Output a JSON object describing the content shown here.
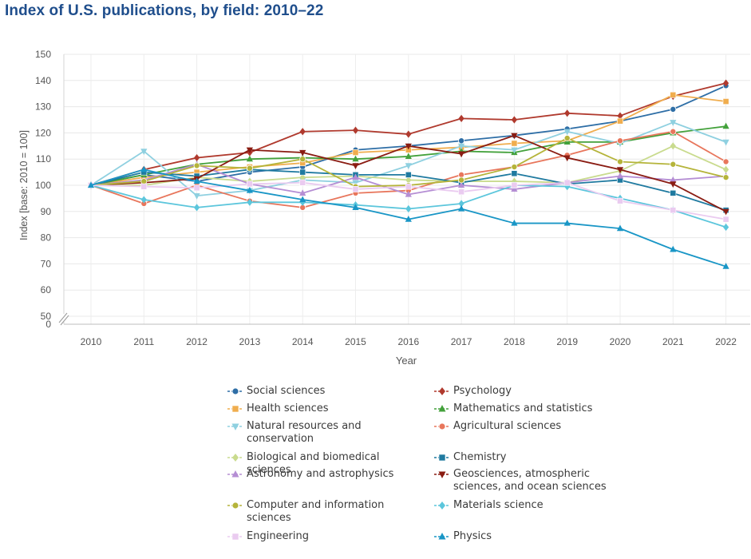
{
  "title": "Index of U.S. publications, by field: 2010–22",
  "chart_data": {
    "type": "line",
    "title": "Index of U.S. publications, by field: 2010–22",
    "xlabel": "Year",
    "ylabel": "Index [base: 2010 = 100]",
    "x": [
      2010,
      2011,
      2012,
      2013,
      2014,
      2015,
      2016,
      2017,
      2018,
      2019,
      2020,
      2021,
      2022
    ],
    "ylim": [
      50,
      150
    ],
    "yticks": [
      150,
      140,
      130,
      120,
      110,
      100,
      90,
      80,
      70,
      60,
      50
    ],
    "y_break_label": "0",
    "grid": true,
    "legend_position": "bottom",
    "series": [
      {
        "name": "Social sciences",
        "color": "#2e6ea6",
        "marker": "circle",
        "values": [
          100,
          104,
          101.5,
          105,
          107,
          113.5,
          115,
          117,
          119,
          121.5,
          124.5,
          129,
          138
        ]
      },
      {
        "name": "Psychology",
        "color": "#b03a2e",
        "marker": "diamond",
        "values": [
          100,
          106,
          110.5,
          112.5,
          120.5,
          121,
          119.5,
          125.5,
          125,
          127.5,
          126.5,
          134,
          139
        ]
      },
      {
        "name": "Health sciences",
        "color": "#f0ad4e",
        "marker": "square",
        "values": [
          100,
          103,
          105,
          107,
          108.5,
          112.5,
          113.5,
          114.5,
          116,
          117,
          124.5,
          134.5,
          132
        ]
      },
      {
        "name": "Mathematics and statistics",
        "color": "#43a13b",
        "marker": "triangle-up",
        "values": [
          100,
          104,
          108,
          110,
          110.5,
          110,
          111,
          113,
          112.5,
          116.5,
          116.5,
          120,
          122.5
        ]
      },
      {
        "name": "Natural resources and conservation",
        "color": "#8fd0e0",
        "marker": "triangle-down",
        "values": [
          100,
          113,
          96,
          98,
          102,
          101,
          107.5,
          115,
          113.5,
          120.5,
          116,
          124,
          116.5
        ]
      },
      {
        "name": "Agricultural sciences",
        "color": "#e8765c",
        "marker": "circle",
        "values": [
          100,
          93,
          100,
          94,
          91.5,
          97,
          98,
          104,
          107,
          111.5,
          117,
          120.5,
          109
        ]
      },
      {
        "name": "Biological and biomedical sciences",
        "color": "#c9db8e",
        "marker": "diamond",
        "values": [
          100,
          100,
          103,
          101.5,
          103,
          103.5,
          102,
          101.5,
          101.5,
          101,
          105.5,
          115,
          106
        ]
      },
      {
        "name": "Chemistry",
        "color": "#1f7aa0",
        "marker": "square",
        "values": [
          100,
          105,
          103.5,
          106,
          105,
          104,
          104,
          101,
          104.5,
          100.5,
          102,
          97,
          90.5
        ]
      },
      {
        "name": "Astronomy and astrophysics",
        "color": "#b58ed4",
        "marker": "triangle-up",
        "values": [
          100,
          102,
          108,
          100.5,
          97,
          103,
          96.5,
          100,
          98.5,
          101,
          103.5,
          102,
          103.5
        ]
      },
      {
        "name": "Geosciences, atmospheric sciences, and ocean sciences",
        "color": "#8a1c12",
        "marker": "triangle-down",
        "values": [
          100,
          101,
          102.5,
          113.5,
          112.5,
          107.5,
          115,
          112,
          119,
          110.5,
          106,
          100.5,
          90
        ]
      },
      {
        "name": "Computer and information sciences",
        "color": "#b5b43a",
        "marker": "circle",
        "values": [
          100,
          101.5,
          107.5,
          106.5,
          110,
          99.5,
          100,
          102,
          107,
          118,
          109,
          108,
          103
        ]
      },
      {
        "name": "Materials science",
        "color": "#5cc6dc",
        "marker": "diamond",
        "values": [
          100,
          94.5,
          91.5,
          93.5,
          93.5,
          92.5,
          91,
          93,
          100,
          99.5,
          95,
          90.5,
          84
        ]
      },
      {
        "name": "Engineering",
        "color": "#eacbf0",
        "marker": "square",
        "values": [
          100,
          99.5,
          99,
          100.5,
          101,
          98.5,
          99.5,
          97.5,
          100,
          101,
          94,
          90.5,
          87
        ]
      },
      {
        "name": "Physics",
        "color": "#1996c6",
        "marker": "triangle-up",
        "values": [
          100,
          106,
          101.5,
          98,
          94.5,
          91.5,
          87,
          91,
          85.5,
          85.5,
          83.5,
          75.5,
          69
        ]
      }
    ]
  },
  "legend": [
    {
      "label": "Social sciences",
      "color": "#2e6ea6",
      "marker": "circle"
    },
    {
      "label": "Psychology",
      "color": "#b03a2e",
      "marker": "diamond"
    },
    {
      "label": "Health sciences",
      "color": "#f0ad4e",
      "marker": "square"
    },
    {
      "label": "Mathematics and statistics",
      "color": "#43a13b",
      "marker": "triangle-up"
    },
    {
      "label": "Natural resources and conservation",
      "color": "#8fd0e0",
      "marker": "triangle-down"
    },
    {
      "label": "Agricultural sciences",
      "color": "#e8765c",
      "marker": "circle"
    },
    {
      "label": "Biological and biomedical sciences",
      "color": "#c9db8e",
      "marker": "diamond"
    },
    {
      "label": "Chemistry",
      "color": "#1f7aa0",
      "marker": "square"
    },
    {
      "label": "Astronomy and astrophysics",
      "color": "#b58ed4",
      "marker": "triangle-up"
    },
    {
      "label": "Geosciences, atmospheric sciences, and ocean sciences",
      "color": "#8a1c12",
      "marker": "triangle-down"
    },
    {
      "label": "Computer and information sciences",
      "color": "#b5b43a",
      "marker": "circle"
    },
    {
      "label": "Materials science",
      "color": "#5cc6dc",
      "marker": "diamond"
    },
    {
      "label": "Engineering",
      "color": "#eacbf0",
      "marker": "square"
    },
    {
      "label": "Physics",
      "color": "#1996c6",
      "marker": "triangle-up"
    }
  ]
}
